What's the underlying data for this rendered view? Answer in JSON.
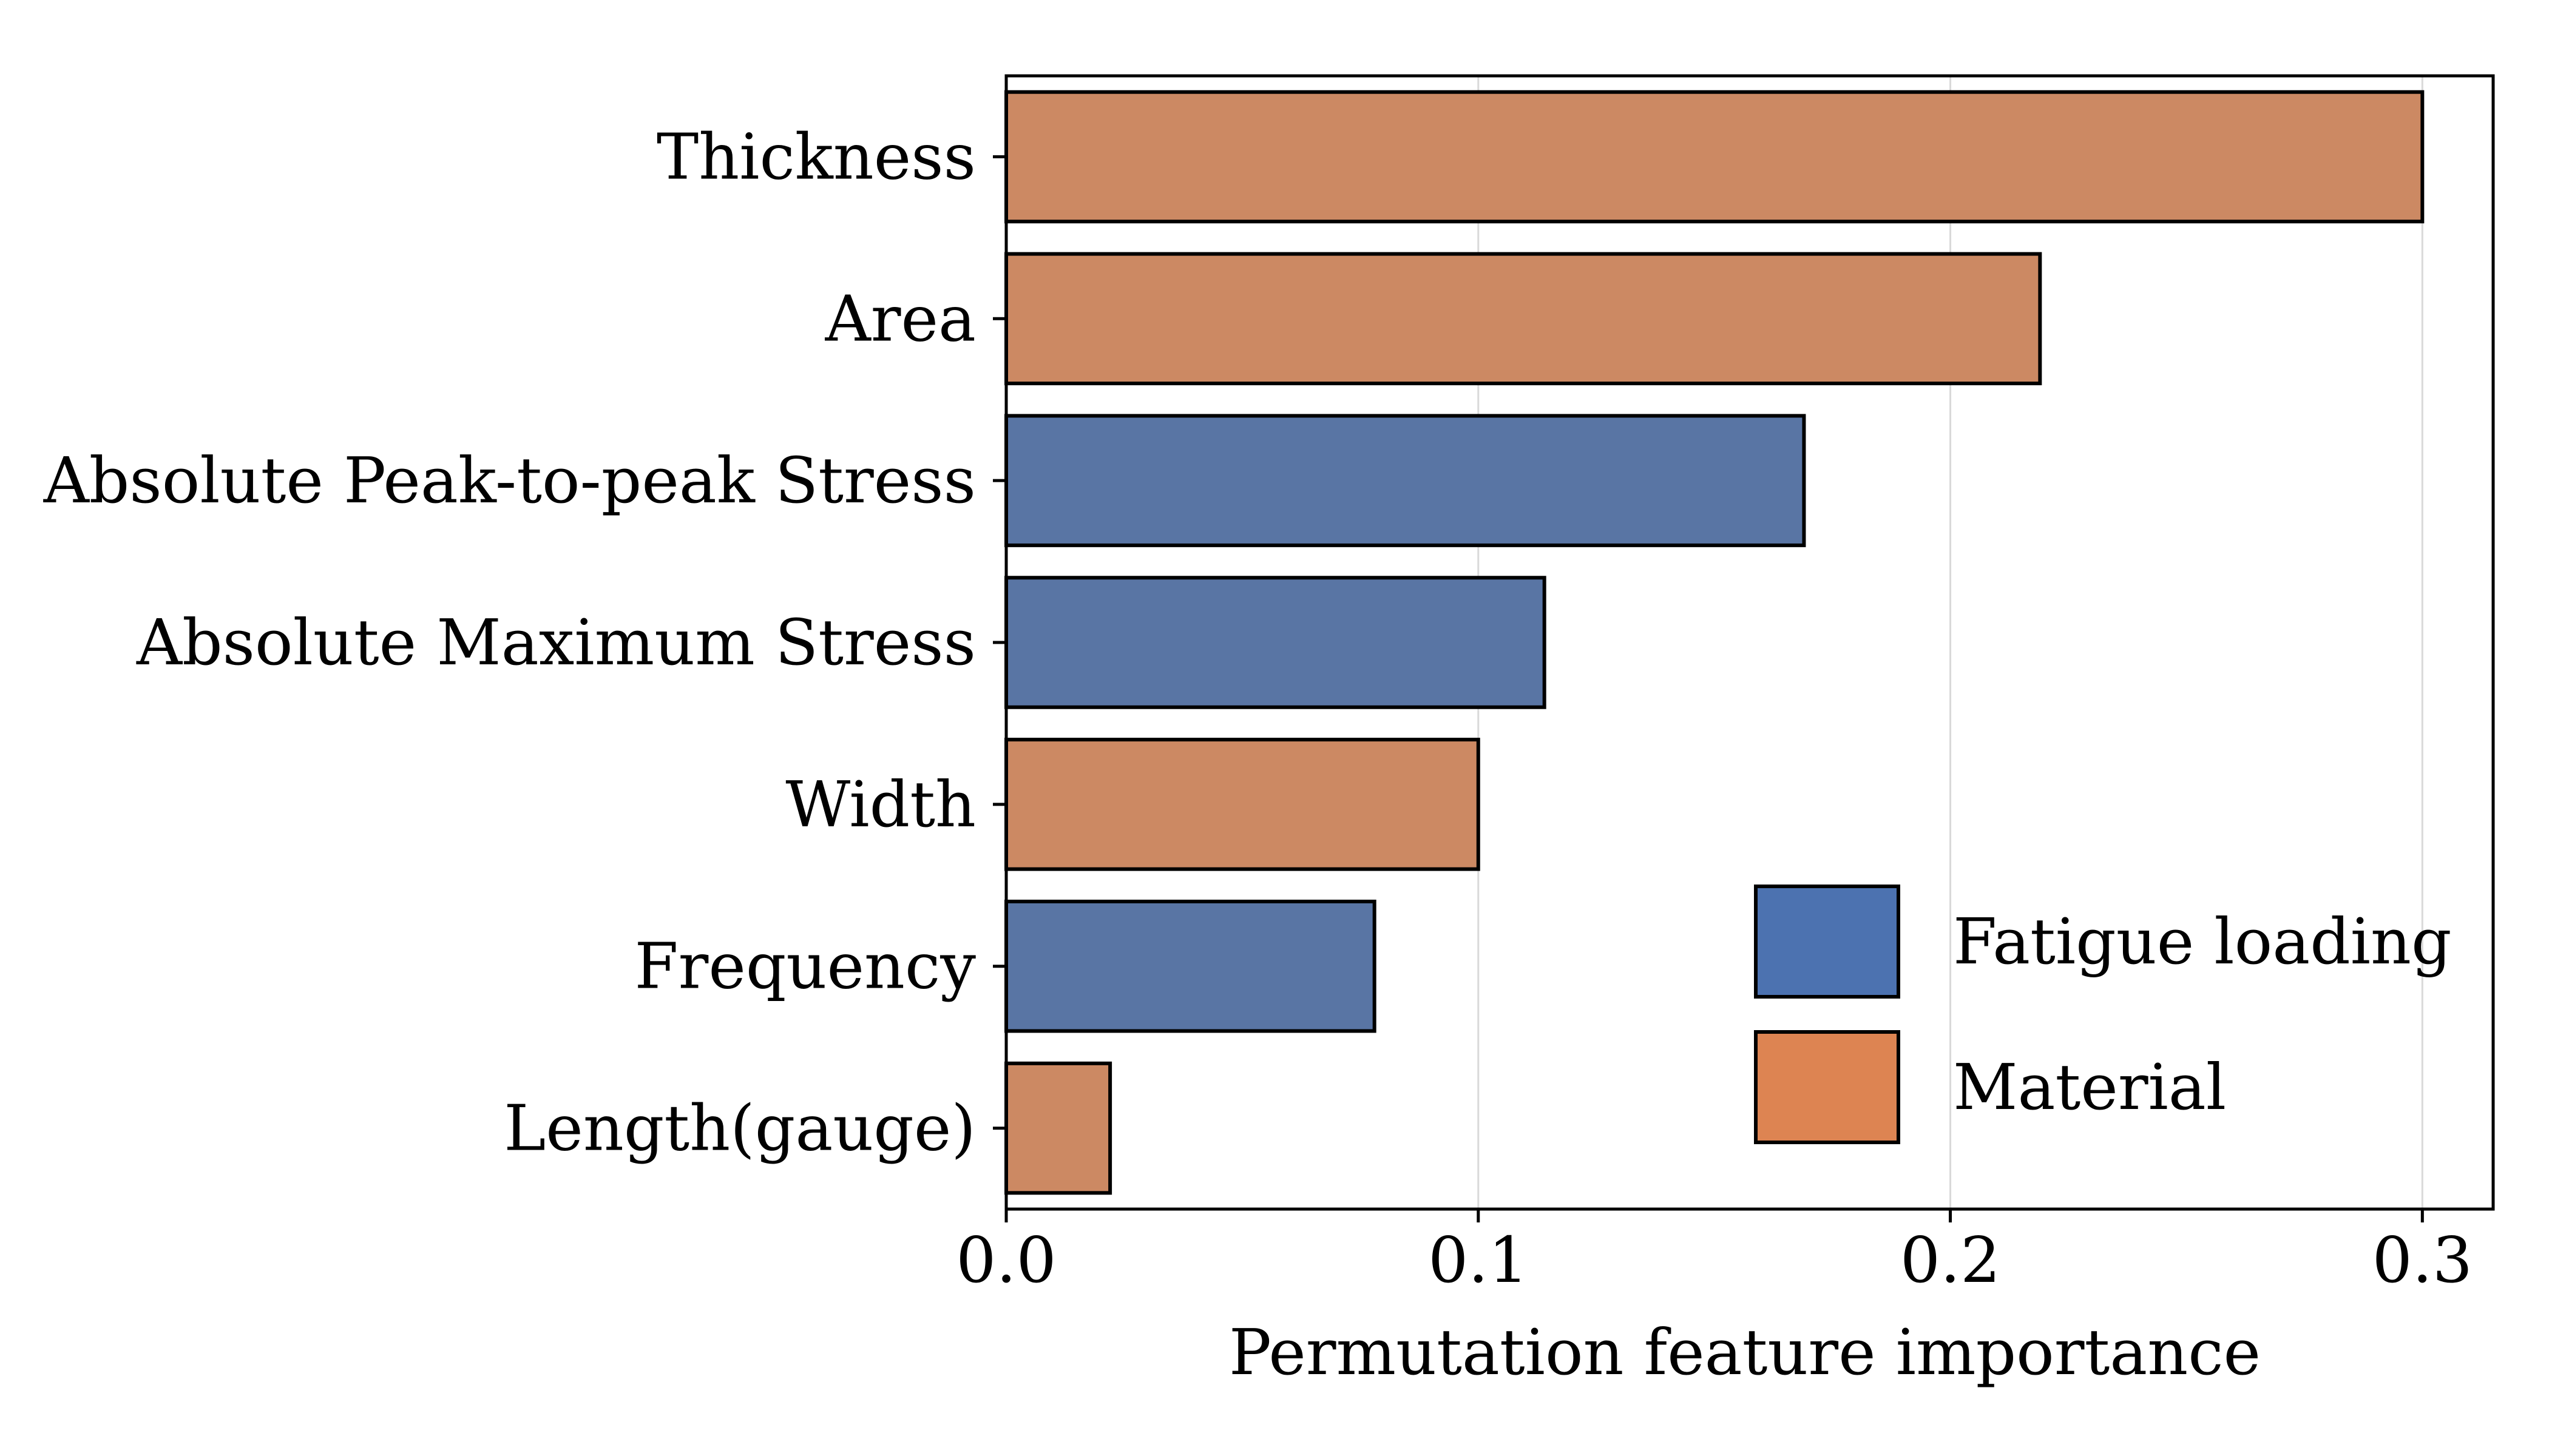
{
  "chart_data": {
    "type": "bar",
    "orientation": "horizontal",
    "title": "",
    "xlabel": "Permutation feature importance",
    "ylabel": "",
    "xlim": [
      0,
      0.315
    ],
    "xticks": [
      0.0,
      0.1,
      0.2,
      0.3
    ],
    "xtick_labels": [
      "0.0",
      "0.1",
      "0.2",
      "0.3"
    ],
    "grid": {
      "x": true,
      "y": false
    },
    "legend_position": "lower-right",
    "categories": [
      "Thickness",
      "Area",
      "Absolute Peak-to-peak Stress",
      "Absolute Maximum Stress",
      "Width",
      "Frequency",
      "Length(gauge)"
    ],
    "values": [
      0.3,
      0.219,
      0.169,
      0.114,
      0.1,
      0.078,
      0.022
    ],
    "groups": [
      "Material",
      "Material",
      "Fatigue loading",
      "Fatigue loading",
      "Material",
      "Fatigue loading",
      "Material"
    ],
    "legend": [
      {
        "label": "Fatigue loading",
        "color": "#4c72b0"
      },
      {
        "label": "Material",
        "color": "#dd8452"
      }
    ],
    "bar_colors": {
      "Fatigue loading": "#5975a4",
      "Material": "#cc8963"
    }
  }
}
